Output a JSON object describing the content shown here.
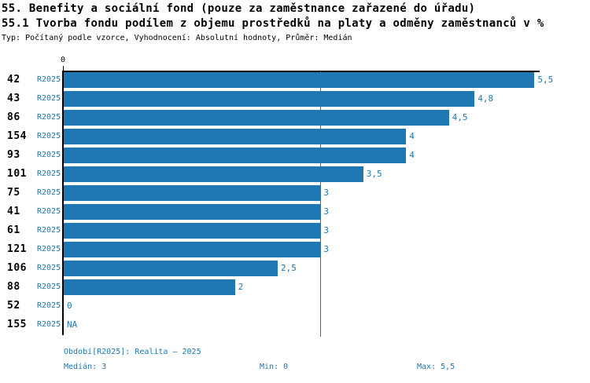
{
  "header": {
    "title_line1": "55. Benefity a sociální fond (pouze za zaměstnance zařazené do úřadu)",
    "title_line2": "55.1 Tvorba fondu podílem z objemu prostředků na platy a odměny zaměstnanců v %",
    "meta": "Typ: Počítaný podle vzorce, Vyhodnocení: Absolutní hodnoty, Průměr: Medián"
  },
  "chart_data": {
    "type": "bar",
    "orientation": "horizontal",
    "title": "55.1 Tvorba fondu podílem z objemu prostředků na platy a odměny zaměstnanců v %",
    "axis_top_tick_label": "0",
    "period_label": "R2025",
    "categories": [
      "42",
      "43",
      "86",
      "154",
      "93",
      "101",
      "75",
      "41",
      "61",
      "121",
      "106",
      "88",
      "52",
      "155"
    ],
    "values": [
      5.5,
      4.8,
      4.5,
      4,
      4,
      3.5,
      3,
      3,
      3,
      3,
      2.5,
      2,
      0,
      null
    ],
    "value_labels": [
      "5,5",
      "4,8",
      "4,5",
      "4",
      "4",
      "3,5",
      "3",
      "3",
      "3",
      "3",
      "2,5",
      "2",
      "0",
      "NA"
    ],
    "xlim": [
      0,
      5.5
    ],
    "median_value": 3,
    "grid": false,
    "legend": false
  },
  "footer": {
    "period_info": "Období[R2025]: Realita – 2025",
    "median_label": "Medián: 3",
    "min_label": "Min: 0",
    "max_label": "Max: 5,5"
  },
  "colors": {
    "accent": "#1F77B4",
    "axis": "#000000",
    "background": "#FFFFFF",
    "bar": "#1F77B4",
    "median_line": "#1F77B4"
  }
}
